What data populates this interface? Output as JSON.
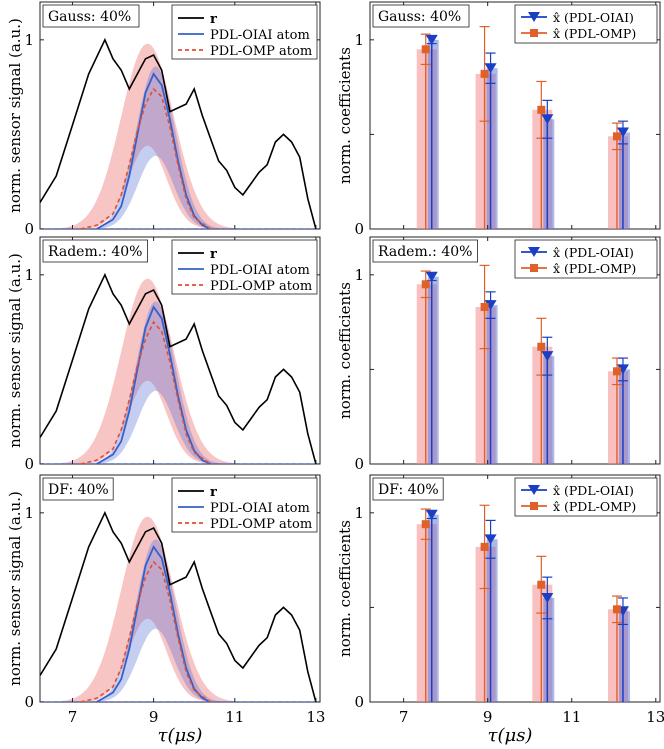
{
  "figure": {
    "xlabel": "τ(μs)",
    "rows": [
      {
        "label": "Gauss: 40%"
      },
      {
        "label": "Radem.: 40%"
      },
      {
        "label": "DF: 40%"
      }
    ]
  },
  "chart_data": [
    {
      "type": "line",
      "panel": "Gauss-signal",
      "title_box": "Gauss: 40%",
      "ylabel": "norm. sensor signal (a.u.)",
      "xlabel": "",
      "xlim": [
        6.2,
        13.1
      ],
      "ylim": [
        0,
        1.2
      ],
      "xticks": [
        7,
        9,
        11,
        13
      ],
      "yticks": [
        0,
        1
      ],
      "legend": [
        "r",
        "PDL-OIAI atom",
        "PDL-OMP atom"
      ],
      "series": [
        {
          "name": "r",
          "color": "#000000",
          "x": [
            6.2,
            6.6,
            7.0,
            7.4,
            7.8,
            8.0,
            8.2,
            8.4,
            8.6,
            8.8,
            9.0,
            9.2,
            9.4,
            9.6,
            9.8,
            10.0,
            10.2,
            10.4,
            10.6,
            10.8,
            11.0,
            11.2,
            11.4,
            11.6,
            11.8,
            12.0,
            12.2,
            12.4,
            12.6,
            12.8,
            13.0
          ],
          "y": [
            0.14,
            0.28,
            0.55,
            0.82,
            1.0,
            0.9,
            0.84,
            0.74,
            0.82,
            0.9,
            0.92,
            0.84,
            0.62,
            0.64,
            0.66,
            0.74,
            0.6,
            0.48,
            0.36,
            0.31,
            0.22,
            0.18,
            0.24,
            0.3,
            0.34,
            0.46,
            0.5,
            0.46,
            0.38,
            0.16,
            0.0
          ]
        },
        {
          "name": "PDL-OIAI atom",
          "color": "#3560c9",
          "x": [
            7.6,
            8.0,
            8.2,
            8.4,
            8.6,
            8.8,
            9.0,
            9.2,
            9.4,
            9.6,
            9.8,
            10.0,
            10.2,
            10.4
          ],
          "y": [
            0.0,
            0.05,
            0.12,
            0.28,
            0.5,
            0.72,
            0.82,
            0.76,
            0.58,
            0.36,
            0.18,
            0.07,
            0.02,
            0.0
          ]
        },
        {
          "name": "PDL-OMP atom",
          "color": "#e05030",
          "x": [
            7.2,
            7.6,
            8.0,
            8.2,
            8.4,
            8.6,
            8.8,
            9.0,
            9.2,
            9.4,
            9.6,
            9.8,
            10.0,
            10.4
          ],
          "y": [
            0.0,
            0.02,
            0.08,
            0.18,
            0.34,
            0.52,
            0.66,
            0.74,
            0.7,
            0.54,
            0.34,
            0.16,
            0.06,
            0.0
          ]
        }
      ]
    },
    {
      "type": "bar",
      "panel": "Gauss-coeff",
      "title_box": "Gauss: 40%",
      "ylabel": "norm. coefficients",
      "xlabel": "",
      "xlim": [
        6.2,
        13.1
      ],
      "ylim": [
        0,
        1.2
      ],
      "xticks": [
        7,
        9,
        11,
        13
      ],
      "yticks": [
        0,
        0.5,
        1
      ],
      "positions": [
        7.55,
        8.95,
        10.3,
        12.1
      ],
      "legend": [
        "x̂ (PDL-OIAI)",
        "x̂ (PDL-OMP)"
      ],
      "series": [
        {
          "name": "x̂ (PDL-OIAI)",
          "color": "#1a3fc4",
          "values": [
            1.0,
            0.85,
            0.58,
            0.51
          ],
          "err": [
            0.02,
            0.08,
            0.1,
            0.06
          ]
        },
        {
          "name": "x̂ (PDL-OMP)",
          "color": "#e0602a",
          "values": [
            0.95,
            0.82,
            0.63,
            0.49
          ],
          "err": [
            0.08,
            0.25,
            0.15,
            0.07
          ]
        }
      ]
    },
    {
      "type": "line",
      "panel": "Radem-signal",
      "title_box": "Radem.: 40%",
      "ylabel": "norm. sensor signal (a.u.)",
      "xlabel": "",
      "xlim": [
        6.2,
        13.1
      ],
      "ylim": [
        0,
        1.2
      ],
      "xticks": [
        7,
        9,
        11,
        13
      ],
      "yticks": [
        0,
        1
      ],
      "legend": [
        "r",
        "PDL-OIAI atom",
        "PDL-OMP atom"
      ],
      "series": [
        {
          "name": "r",
          "color": "#000000",
          "x": [
            6.2,
            6.6,
            7.0,
            7.4,
            7.8,
            8.0,
            8.2,
            8.4,
            8.6,
            8.8,
            9.0,
            9.2,
            9.4,
            9.6,
            9.8,
            10.0,
            10.2,
            10.4,
            10.6,
            10.8,
            11.0,
            11.2,
            11.4,
            11.6,
            11.8,
            12.0,
            12.2,
            12.4,
            12.6,
            12.8,
            13.0
          ],
          "y": [
            0.14,
            0.28,
            0.55,
            0.82,
            1.0,
            0.9,
            0.84,
            0.74,
            0.82,
            0.9,
            0.92,
            0.84,
            0.62,
            0.64,
            0.66,
            0.74,
            0.6,
            0.48,
            0.36,
            0.31,
            0.22,
            0.18,
            0.24,
            0.3,
            0.34,
            0.46,
            0.5,
            0.46,
            0.38,
            0.16,
            0.0
          ]
        },
        {
          "name": "PDL-OIAI atom",
          "color": "#3560c9",
          "x": [
            7.6,
            8.0,
            8.2,
            8.4,
            8.6,
            8.8,
            9.0,
            9.2,
            9.4,
            9.6,
            9.8,
            10.0,
            10.2,
            10.4
          ],
          "y": [
            0.0,
            0.05,
            0.12,
            0.28,
            0.5,
            0.72,
            0.83,
            0.77,
            0.58,
            0.36,
            0.18,
            0.07,
            0.02,
            0.0
          ]
        },
        {
          "name": "PDL-OMP atom",
          "color": "#e05030",
          "x": [
            7.2,
            7.6,
            8.0,
            8.2,
            8.4,
            8.6,
            8.8,
            9.0,
            9.2,
            9.4,
            9.6,
            9.8,
            10.0,
            10.4
          ],
          "y": [
            0.0,
            0.02,
            0.08,
            0.18,
            0.34,
            0.52,
            0.66,
            0.75,
            0.7,
            0.54,
            0.34,
            0.16,
            0.06,
            0.0
          ]
        }
      ]
    },
    {
      "type": "bar",
      "panel": "Radem-coeff",
      "title_box": "Radem.: 40%",
      "ylabel": "norm. coefficients",
      "xlabel": "",
      "xlim": [
        6.2,
        13.1
      ],
      "ylim": [
        0,
        1.2
      ],
      "xticks": [
        7,
        9,
        11,
        13
      ],
      "yticks": [
        0,
        0.5,
        1
      ],
      "positions": [
        7.55,
        8.95,
        10.3,
        12.1
      ],
      "legend": [
        "x̂ (PDL-OIAI)",
        "x̂ (PDL-OMP)"
      ],
      "series": [
        {
          "name": "x̂ (PDL-OIAI)",
          "color": "#1a3fc4",
          "values": [
            0.99,
            0.84,
            0.57,
            0.5
          ],
          "err": [
            0.02,
            0.07,
            0.1,
            0.06
          ]
        },
        {
          "name": "x̂ (PDL-OMP)",
          "color": "#e0602a",
          "values": [
            0.95,
            0.83,
            0.62,
            0.49
          ],
          "err": [
            0.07,
            0.22,
            0.15,
            0.07
          ]
        }
      ]
    },
    {
      "type": "line",
      "panel": "DF-signal",
      "title_box": "DF: 40%",
      "ylabel": "norm. sensor signal (a.u.)",
      "xlabel": "τ(μs)",
      "xlim": [
        6.2,
        13.1
      ],
      "ylim": [
        0,
        1.2
      ],
      "xticks": [
        7,
        9,
        11,
        13
      ],
      "yticks": [
        0,
        1
      ],
      "legend": [
        "r",
        "PDL-OIAI atom",
        "PDL-OMP atom"
      ],
      "series": [
        {
          "name": "r",
          "color": "#000000",
          "x": [
            6.2,
            6.6,
            7.0,
            7.4,
            7.8,
            8.0,
            8.2,
            8.4,
            8.6,
            8.8,
            9.0,
            9.2,
            9.4,
            9.6,
            9.8,
            10.0,
            10.2,
            10.4,
            10.6,
            10.8,
            11.0,
            11.2,
            11.4,
            11.6,
            11.8,
            12.0,
            12.2,
            12.4,
            12.6,
            12.8,
            13.0
          ],
          "y": [
            0.14,
            0.28,
            0.55,
            0.82,
            1.0,
            0.9,
            0.84,
            0.74,
            0.82,
            0.9,
            0.92,
            0.84,
            0.62,
            0.64,
            0.66,
            0.74,
            0.6,
            0.48,
            0.36,
            0.31,
            0.22,
            0.18,
            0.24,
            0.3,
            0.34,
            0.46,
            0.5,
            0.46,
            0.38,
            0.16,
            0.0
          ]
        },
        {
          "name": "PDL-OIAI atom",
          "color": "#3560c9",
          "x": [
            7.6,
            8.0,
            8.2,
            8.4,
            8.6,
            8.8,
            9.0,
            9.2,
            9.4,
            9.6,
            9.8,
            10.0,
            10.2,
            10.4
          ],
          "y": [
            0.0,
            0.05,
            0.12,
            0.28,
            0.5,
            0.72,
            0.82,
            0.76,
            0.58,
            0.36,
            0.18,
            0.07,
            0.02,
            0.0
          ]
        },
        {
          "name": "PDL-OMP atom",
          "color": "#e05030",
          "x": [
            7.2,
            7.6,
            8.0,
            8.2,
            8.4,
            8.6,
            8.8,
            9.0,
            9.2,
            9.4,
            9.6,
            9.8,
            10.0,
            10.4
          ],
          "y": [
            0.0,
            0.02,
            0.08,
            0.18,
            0.34,
            0.52,
            0.66,
            0.74,
            0.7,
            0.54,
            0.34,
            0.16,
            0.06,
            0.0
          ]
        }
      ]
    },
    {
      "type": "bar",
      "panel": "DF-coeff",
      "title_box": "DF: 40%",
      "ylabel": "norm. coefficients",
      "xlabel": "τ(μs)",
      "xlim": [
        6.2,
        13.1
      ],
      "ylim": [
        0,
        1.2
      ],
      "xticks": [
        7,
        9,
        11,
        13
      ],
      "yticks": [
        0,
        0.5,
        1
      ],
      "positions": [
        7.55,
        8.95,
        10.3,
        12.1
      ],
      "legend": [
        "x̂ (PDL-OIAI)",
        "x̂ (PDL-OMP)"
      ],
      "series": [
        {
          "name": "x̂ (PDL-OIAI)",
          "color": "#1a3fc4",
          "values": [
            0.99,
            0.86,
            0.55,
            0.48
          ],
          "err": [
            0.02,
            0.1,
            0.11,
            0.07
          ]
        },
        {
          "name": "x̂ (PDL-OMP)",
          "color": "#e0602a",
          "values": [
            0.94,
            0.82,
            0.62,
            0.49
          ],
          "err": [
            0.08,
            0.22,
            0.15,
            0.07
          ]
        }
      ]
    }
  ]
}
